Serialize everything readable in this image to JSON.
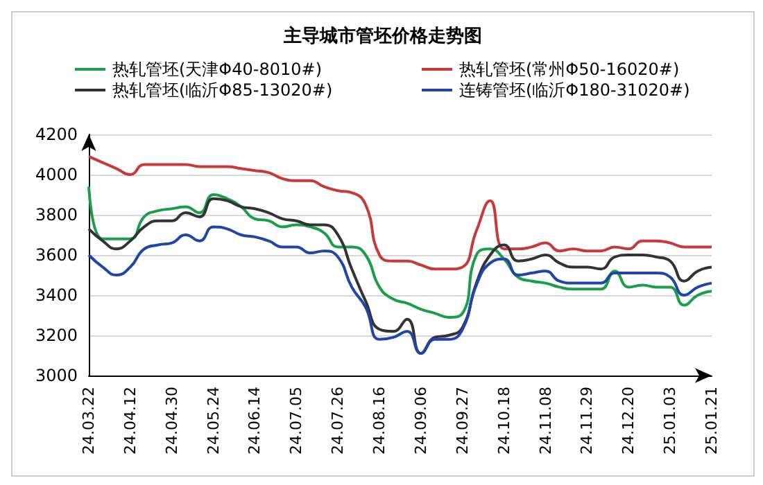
{
  "chart_data": {
    "type": "line",
    "title": "主导城市管坯价格走势图",
    "categories": [
      "24.03.22",
      null,
      null,
      "24.04.12",
      null,
      null,
      "24.04.30",
      null,
      null,
      "24.05.24",
      null,
      null,
      "24.06.14",
      null,
      null,
      "24.07.05",
      null,
      null,
      "24.07.26",
      null,
      null,
      "24.08.16",
      null,
      null,
      "24.09.06",
      null,
      null,
      "24.09.27",
      null,
      null,
      "24.10.18",
      null,
      null,
      "24.11.08",
      null,
      null,
      "24.11.29",
      null,
      null,
      "24.12.20",
      null,
      null,
      "25.01.03",
      null,
      null,
      "25.01.21"
    ],
    "series": [
      {
        "name": "热轧管坯(天津Φ40-8010#)",
        "color": "#1a9e4a",
        "values": [
          3940,
          3680,
          3680,
          3680,
          3790,
          3820,
          3830,
          3840,
          3810,
          3900,
          3880,
          3840,
          3780,
          3770,
          3740,
          3750,
          3740,
          3710,
          3640,
          3640,
          3600,
          3440,
          3380,
          3360,
          3330,
          3310,
          3290,
          3310,
          3600,
          3630,
          3580,
          3490,
          3470,
          3460,
          3440,
          3430,
          3430,
          3430,
          3520,
          3440,
          3450,
          3440,
          3440,
          3350,
          3400,
          3420
        ]
      },
      {
        "name": "热轧管坯(常州Φ50-16020#)",
        "color": "#c83a3a",
        "values": [
          4090,
          4060,
          4030,
          4000,
          4050,
          4050,
          4050,
          4050,
          4040,
          4040,
          4040,
          4030,
          4020,
          4010,
          3980,
          3970,
          3970,
          3940,
          3920,
          3910,
          3850,
          3600,
          3570,
          3570,
          3550,
          3530,
          3530,
          3540,
          3720,
          3870,
          3630,
          3630,
          3640,
          3660,
          3620,
          3630,
          3620,
          3620,
          3640,
          3630,
          3670,
          3670,
          3660,
          3640,
          3640,
          3640
        ]
      },
      {
        "name": "热轧管坯(临沂Φ85-13020#)",
        "color": "#333333",
        "values": [
          3730,
          3670,
          3630,
          3670,
          3740,
          3770,
          3770,
          3810,
          3790,
          3880,
          3870,
          3840,
          3830,
          3810,
          3780,
          3770,
          3750,
          3750,
          3700,
          3530,
          3370,
          3230,
          3220,
          3280,
          3110,
          3190,
          3200,
          3240,
          3460,
          3600,
          3650,
          3570,
          3580,
          3600,
          3560,
          3540,
          3540,
          3530,
          3590,
          3600,
          3600,
          3590,
          3570,
          3470,
          3520,
          3540
        ]
      },
      {
        "name": "连铸管坯(临沂Φ180-31020#)",
        "color": "#1f45a8",
        "values": [
          3600,
          3540,
          3500,
          3540,
          3630,
          3650,
          3660,
          3700,
          3670,
          3740,
          3730,
          3700,
          3690,
          3670,
          3640,
          3640,
          3610,
          3620,
          3590,
          3440,
          3340,
          3180,
          3190,
          3220,
          3110,
          3180,
          3180,
          3230,
          3450,
          3560,
          3580,
          3500,
          3510,
          3520,
          3470,
          3460,
          3460,
          3460,
          3510,
          3510,
          3510,
          3510,
          3490,
          3400,
          3440,
          3460
        ]
      }
    ],
    "ylim": [
      3000,
      4200
    ],
    "yticks": [
      3000,
      3200,
      3400,
      3600,
      3800,
      4000,
      4200
    ],
    "grid": "y",
    "legend": "top",
    "marker": "none",
    "line_style": "solid"
  }
}
